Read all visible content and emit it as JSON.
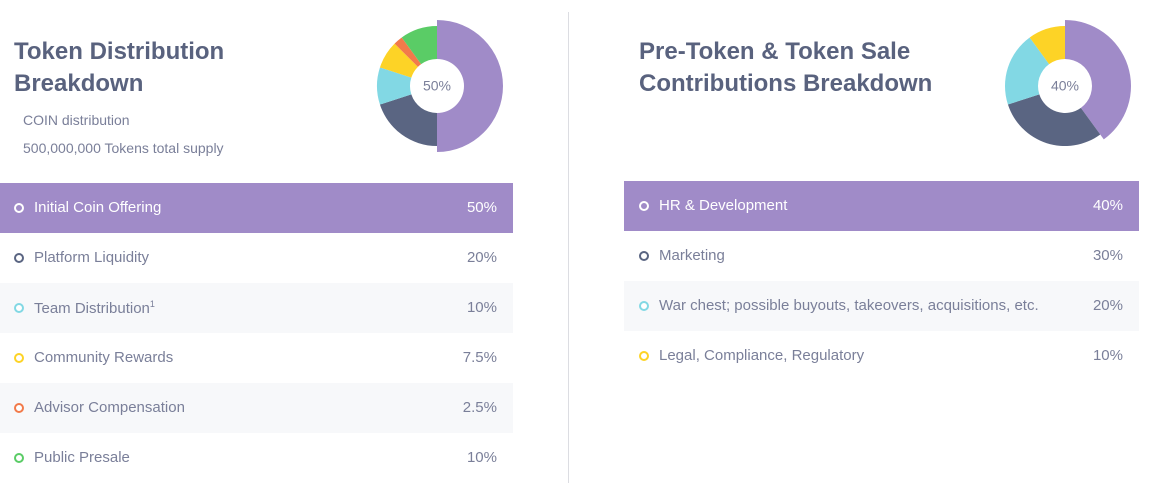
{
  "chart_data": [
    {
      "type": "pie",
      "title": "Token Distribution Breakdown",
      "subtitle": [
        "COIN distribution",
        "500,000,000 Tokens total supply"
      ],
      "categories": [
        "Initial Coin Offering",
        "Platform Liquidity",
        "Team Distribution",
        "Community Rewards",
        "Advisor Compensation",
        "Public Presale"
      ],
      "category_marks": [
        null,
        null,
        "1",
        null,
        null,
        null
      ],
      "values": [
        50,
        20,
        10,
        7.5,
        2.5,
        10
      ],
      "value_labels": [
        "50%",
        "20%",
        "10%",
        "7.5%",
        "2.5%",
        "10%"
      ],
      "colors": [
        "#a08bc8",
        "#5a6582",
        "#82d8e4",
        "#fdd326",
        "#f27a4a",
        "#5acc66"
      ]
    },
    {
      "type": "pie",
      "title": "Pre-Token & Token Sale Contributions Breakdown",
      "categories": [
        "HR & Development",
        "Marketing",
        "War chest; possible buyouts, takeovers, acquisitions, etc.",
        "Legal, Compliance, Regulatory"
      ],
      "values": [
        40,
        30,
        20,
        10
      ],
      "value_labels": [
        "40%",
        "30%",
        "20%",
        "10%"
      ],
      "colors": [
        "#a08bc8",
        "#5a6582",
        "#82d8e4",
        "#fdd326"
      ]
    }
  ]
}
